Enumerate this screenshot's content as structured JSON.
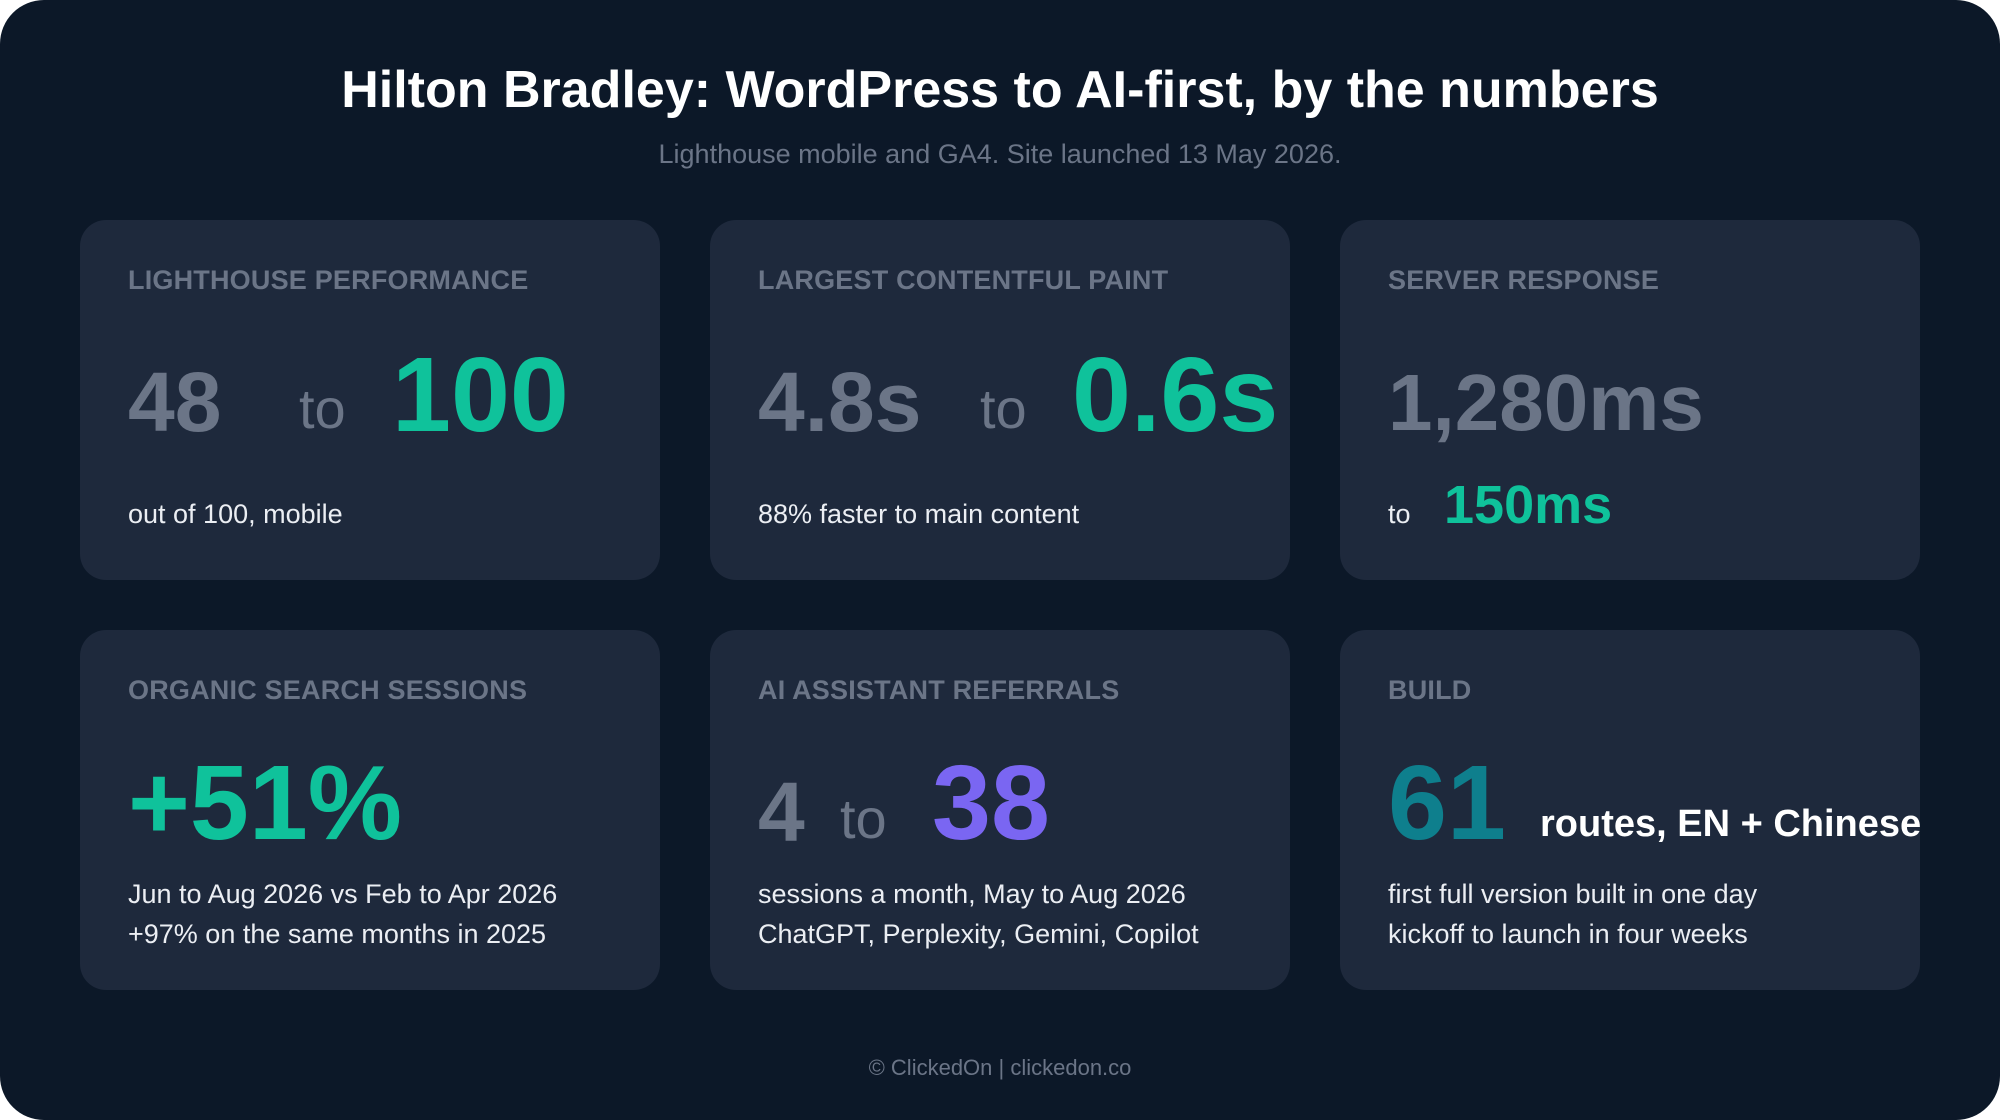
{
  "header": {
    "title": "Hilton Bradley: WordPress to AI-first, by the numbers",
    "subtitle": "Lighthouse mobile and GA4. Site launched 13 May 2026."
  },
  "cards": [
    {
      "label": "LIGHTHOUSE PERFORMANCE",
      "from": "48",
      "to_word": "to",
      "to": "100",
      "desc": [
        "out of 100, mobile"
      ]
    },
    {
      "label": "LARGEST CONTENTFUL PAINT",
      "from": "4.8s",
      "to_word": "to",
      "to": "0.6s",
      "desc": [
        "88% faster to main content"
      ]
    },
    {
      "label": "SERVER RESPONSE",
      "from": "1,280ms",
      "to_word": "to",
      "to": "150ms",
      "desc": []
    },
    {
      "label": "ORGANIC SEARCH SESSIONS",
      "value": "+51%",
      "desc": [
        "Jun to Aug 2026 vs Feb to Apr 2026",
        "+97% on the same months in 2025"
      ]
    },
    {
      "label": "AI ASSISTANT REFERRALS",
      "from": "4",
      "to_word": "to",
      "to": "38",
      "desc": [
        "sessions a month, May to Aug 2026",
        "ChatGPT, Perplexity, Gemini, Copilot"
      ]
    },
    {
      "label": "BUILD",
      "value": "61",
      "suffix": "routes, EN + Chinese",
      "desc": [
        "first full version built in one day",
        "kickoff to launch in four weeks"
      ]
    }
  ],
  "footer": {
    "text": "© ClickedOn | clickedon.co"
  },
  "colors": {
    "background": "#0c1828",
    "card": "#1e293c",
    "muted": "#6b7587",
    "green": "#0fc29b",
    "purple": "#7a66f2",
    "teal": "#0e7f8d",
    "text": "#ebeef3"
  }
}
